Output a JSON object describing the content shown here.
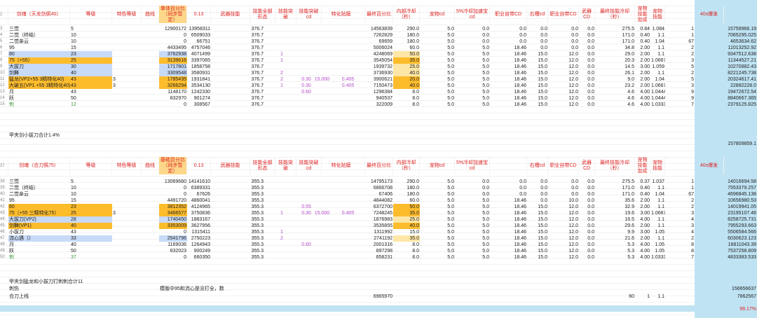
{
  "section1": {
    "headers": [
      "剑魂（天龙剑佩40）",
      "等级",
      "特色等级",
      "曲线",
      "单体百分比（同步暂定）",
      "0.13",
      "武器技能",
      "技能全部形态",
      "技能突破",
      "技能突破cd",
      "特化贴膜",
      "",
      "最终百分比",
      "内部冷却（秒）",
      "宠物cd",
      "5%冷却加速宝cd",
      "职业自带CD",
      "右槽cd",
      "职业自带CD",
      "武器CD",
      "最终技能冷却（秒）",
      "宠物技能加成",
      "宠物技能",
      "40s爆发"
    ],
    "rows": [
      {
        "n": "3",
        "c": [
          "三觉",
          "5",
          "",
          "",
          "12900172",
          "13958311",
          "376.7",
          "",
          "",
          "",
          "",
          "",
          "14563839",
          "290.0",
          "5.0",
          "0.0",
          "0.0",
          "0.0",
          "0.0",
          "0.0",
          "275.5",
          "0.84",
          "1.084",
          "1",
          "15759966.19"
        ],
        "cls": ""
      },
      {
        "n": "4",
        "c": [
          "二觉（终结）",
          "10",
          "",
          "",
          "0",
          "6509033",
          "376.7",
          "",
          "",
          "",
          "",
          "",
          "7262829",
          "180.0",
          "5.0",
          "0.0",
          "0.0",
          "0.0",
          "0.0",
          "0.0",
          "171.0",
          "0.40",
          "1.1",
          "1",
          "7065295.025"
        ],
        "cls": ""
      },
      {
        "n": "5",
        "c": [
          "二觉亲云",
          "10",
          "",
          "",
          "0",
          "66751",
          "376.7",
          "",
          "",
          "",
          "",
          "",
          "69659",
          "180.0",
          "5.0",
          "0.0",
          "0.0",
          "0.0",
          "0.0",
          "0.0",
          "171.0",
          "0.40",
          "1.04",
          "67",
          "4653634.62"
        ],
        "cls": ""
      },
      {
        "n": "6",
        "c": [
          "95",
          "15",
          "",
          "",
          "4433495",
          "4757046",
          "376.7",
          "",
          "",
          "",
          "",
          "",
          "5006024",
          "60.0",
          "5.0",
          "5.0",
          "18.46",
          "0.0",
          "0.0",
          "0.0",
          "34.8",
          "2.00",
          "1.1",
          "2",
          "11013252.92"
        ],
        "cls": ""
      },
      {
        "n": "7",
        "c": [
          "80",
          "23",
          "",
          "",
          "3762938",
          "4071499",
          "376.7",
          "1",
          "",
          "",
          "",
          "",
          "4248069",
          "50.0",
          "5.0",
          "5.0",
          "18.46",
          "15.0",
          "12.0",
          "0.0",
          "29.0",
          "2.00",
          "1.1",
          "2",
          "9347512.638"
        ],
        "cls": "blue"
      },
      {
        "n": "8",
        "c": [
          "75（+55）",
          "25",
          "",
          "",
          "3139616",
          "3397065",
          "376.7",
          "1",
          "",
          "",
          "",
          "",
          "3545054",
          "35.0",
          "5.0",
          "5.0",
          "18.46",
          "15.0",
          "12.0",
          "0.0",
          "20.3",
          "2.00",
          "1.0667",
          "3",
          "11344527.21"
        ],
        "cls": "orange"
      },
      {
        "n": "9",
        "c": [
          "大拔刀",
          "30",
          "",
          "",
          "1717801",
          "1858758",
          "376.7",
          "",
          "",
          "",
          "",
          "",
          "1939732",
          "25.0",
          "5.0",
          "5.0",
          "18.46",
          "15.0",
          "12.0",
          "0.0",
          "14.5",
          "3.00",
          "1.059",
          "5",
          "10270882.43"
        ],
        "cls": "blue"
      },
      {
        "n": "10",
        "c": [
          "剑舞",
          "40",
          "",
          "",
          "3309548",
          "3580931",
          "376.7",
          "2",
          "",
          "",
          "",
          "",
          "3736930",
          "40.0",
          "5.0",
          "5.0",
          "18.46",
          "15.0",
          "12.0",
          "0.0",
          "26.1",
          "2.00",
          "1.1",
          "2",
          "8221245.738"
        ],
        "cls": "blue"
      },
      {
        "n": "11",
        "c": [
          "猛龙(VP2+55 3精特化40)",
          "43",
          "3",
          "",
          "1785435",
          "1931841",
          "376.7",
          "2",
          "0.30",
          "15.000",
          "0.405",
          "",
          "3900621",
          "20.0",
          "5.0",
          "5.0",
          "18.46",
          "15.0",
          "12.0",
          "0.0",
          "9.0",
          "2.00",
          "1.04",
          "5",
          "20324617.41"
        ],
        "cls": "orange"
      },
      {
        "n": "12",
        "c": [
          "大破五(VP1 +55 3精特化40)",
          "43",
          "3",
          "",
          "3266294",
          "3534130",
          "376.7",
          "1",
          "0.30",
          "",
          "0.405",
          "",
          "7150473",
          "40.0",
          "5.0",
          "5.0",
          "18.46",
          "15.0",
          "12.0",
          "0.0",
          "23.2",
          "2.00",
          "1.0667",
          "3",
          "22882228.0"
        ],
        "cls": "orange"
      },
      {
        "n": "13",
        "c": [
          "月",
          "43",
          "",
          "",
          "1148170",
          "1242330",
          "376.7",
          "",
          "0.60",
          "",
          "",
          "",
          "1296384",
          "8.0",
          "5.0",
          "5.0",
          "18.46",
          "15.0",
          "12.0",
          "0.0",
          "4.6",
          "4.00",
          "1.0444",
          "9",
          "19472672.54"
        ],
        "cls": ""
      },
      {
        "n": "14",
        "c": [
          "跃",
          "50",
          "",
          "",
          "832970",
          "901274",
          "376.7",
          "",
          "",
          "",
          "",
          "",
          "940537",
          "8.0",
          "5.0",
          "5.0",
          "18.46",
          "15.0",
          "12.0",
          "0.0",
          "4.6",
          "4.00",
          "1.0444",
          "9",
          "8840667.365"
        ],
        "cls": ""
      },
      {
        "n": "15",
        "c": [
          "刺",
          "12",
          "",
          "",
          "0",
          "308567",
          "376.7",
          "",
          "",
          "",
          "",
          "",
          "322009",
          "8.0",
          "5.0",
          "5.0",
          "18.46",
          "15.0",
          "12.0",
          "0.0",
          "4.6",
          "4.00",
          "1.0333",
          "7",
          "2379125.825"
        ],
        "cls": "green"
      }
    ],
    "note": "甲夹剑小拔刀合计1.4%",
    "total": "157809859.1"
  },
  "section2": {
    "headers": [
      "剑魂（合刀佩75）",
      "等级",
      "特色等级",
      "曲线",
      "基础百分比（同步暂定）",
      "0.13",
      "武器技能",
      "技能全部形态",
      "技能突破",
      "技能突破cd",
      "特化贴膜",
      "",
      "最终百分比",
      "内部冷却（秒）",
      "宠物cd",
      "5%冷却加速宝cd",
      "",
      "右槽cd",
      "职业自带CD",
      "武器CD",
      "最终技能冷却（秒）",
      "宠物技能加成",
      "宠物技能",
      "40s爆发"
    ],
    "rows": [
      {
        "n": "38",
        "c": [
          "三觉",
          "5",
          "",
          "",
          "13069660",
          "14141610",
          "355.3",
          "",
          "",
          "",
          "",
          "",
          "14795173",
          "290.0",
          "5.0",
          "0.0",
          "0.0",
          "0.0",
          "0.0",
          "0.0",
          "275.5",
          "0.37",
          "1.037",
          "1",
          "14016694.58"
        ],
        "cls": ""
      },
      {
        "n": "39",
        "c": [
          "二觉（终结）",
          "10",
          "",
          "",
          "0",
          "6389331",
          "355.3",
          "",
          "",
          "",
          "",
          "",
          "6866708",
          "180.0",
          "5.0",
          "0.0",
          "0.0",
          "0.0",
          "0.0",
          "0.0",
          "171.0",
          "0.40",
          "1.1",
          "1",
          "7553379.257"
        ],
        "cls": ""
      },
      {
        "n": "40",
        "c": [
          "二觉亲云",
          "10",
          "",
          "",
          "0",
          "67626",
          "355.3",
          "",
          "",
          "",
          "",
          "",
          "67406",
          "180.0",
          "5.0",
          "0.0",
          "0.0",
          "0.0",
          "0.0",
          "0.0",
          "171.0",
          "0.40",
          "1.04",
          "67",
          "4696845.138"
        ],
        "cls": ""
      },
      {
        "n": "41",
        "c": [
          "95",
          "15",
          "",
          "",
          "4491720",
          "4860041",
          "355.3",
          "",
          "",
          "",
          "",
          "",
          "4844082",
          "60.0",
          "5.0",
          "5.0",
          "18.46",
          "0.0",
          "10.0",
          "0.0",
          "35.6",
          "2.00",
          "1.1",
          "2",
          "10656980.53"
        ],
        "cls": ""
      },
      {
        "n": "42",
        "c": [
          "80",
          "23",
          "",
          "",
          "3812352",
          "4124965",
          "355.3",
          "",
          "0.55",
          "",
          "",
          "",
          "6372700",
          "50.0",
          "5.0",
          "5.0",
          "18.46",
          "15.0",
          "12.0",
          "0.0",
          "32.9",
          "2.00",
          "1.1",
          "2",
          "14019941.05"
        ],
        "cls": "orange"
      },
      {
        "n": "43",
        "c": [
          "75（+55 三精特化75）",
          "25",
          "3",
          "",
          "3466577",
          "3750836",
          "355.3",
          "1",
          "0.30",
          "15.000",
          "0.405",
          "",
          "7248245",
          "35.0",
          "5.0",
          "5.0",
          "18.46",
          "15.0",
          "12.0",
          "0.0",
          "19.6",
          "3.00",
          "1.0667",
          "3",
          "23195107.46"
        ],
        "cls": "orange"
      },
      {
        "n": "44",
        "c": [
          "大拔刀(VP2)",
          "28",
          "",
          "",
          "1740450",
          "1883167",
          "355.3",
          "",
          "",
          "",
          "",
          "",
          "1876983",
          "25.0",
          "5.0",
          "5.0",
          "18.46",
          "15.0",
          "12.0",
          "0.0",
          "16.5",
          "4.00",
          "1.1",
          "4",
          "8258725.731"
        ],
        "cls": "blue"
      },
      {
        "n": "45",
        "c": [
          "剑舞(VP1)",
          "40",
          "",
          "",
          "3353009",
          "3627956",
          "355.3",
          "",
          "",
          "",
          "",
          "",
          "3535855",
          "40.0",
          "5.0",
          "5.0",
          "18.46",
          "15.0",
          "12.0",
          "0.0",
          "29.6",
          "2.00",
          "1.1",
          "3",
          "7955293.663"
        ],
        "cls": "orange"
      },
      {
        "n": "46",
        "c": [
          "小拔刀",
          "43",
          "",
          "",
          "0",
          "1315411",
          "355.3",
          "1",
          "",
          "",
          "",
          "",
          "1311992",
          "15.0",
          "5.0",
          "5.0",
          "18.46",
          "15.0",
          "12.0",
          "0.0",
          "9.9",
          "3.00",
          "1.05",
          "4",
          "5506584.566"
        ],
        "cls": ""
      },
      {
        "n": "47",
        "c": [
          "流心遇（）",
          "33",
          "",
          "",
          "2541796",
          "2750223",
          "355.3",
          "2",
          "",
          "",
          "",
          "",
          "2741192",
          "35.0",
          "5.0",
          "5.0",
          "18.46",
          "15.0",
          "12.0",
          "0.0",
          "21.6",
          "2.00",
          "1.1",
          "2",
          "6030623.123"
        ],
        "cls": "blue"
      },
      {
        "n": "48",
        "c": [
          "月",
          "40",
          "",
          "",
          "1169036",
          "1264943",
          "355.3",
          "",
          "0.60",
          "",
          "",
          "",
          "2001316",
          "8.0",
          "5.0",
          "5.0",
          "18.46",
          "15.0",
          "12.0",
          "0.0",
          "5.3",
          "4.00",
          "1.05",
          "8",
          "16811043.39"
        ],
        "cls": ""
      },
      {
        "n": "49",
        "c": [
          "跃",
          "50",
          "",
          "",
          "832023",
          "900249",
          "355.3",
          "",
          "",
          "",
          "",
          "",
          "897298",
          "8.0",
          "5.0",
          "5.0",
          "18.46",
          "15.0",
          "12.0",
          "0.0",
          "5.3",
          "4.00",
          "1.05",
          "8",
          "7537258.809"
        ],
        "cls": ""
      },
      {
        "n": "50",
        "c": [
          "刺",
          "37",
          "",
          "",
          "0",
          "660350",
          "355.3",
          "",
          "",
          "",
          "",
          "",
          "658231",
          "8.0",
          "5.0",
          "5.0",
          "18.46",
          "15.0",
          "12.0",
          "0.0",
          "5.3",
          "4.00",
          "1.0333",
          "7",
          "4833383.533"
        ],
        "cls": "green"
      }
    ],
    "note": "甲夹剑猛龙和小拔刀打刺刺合计11",
    "footer1_label": "刺伤",
    "footer1_text": "模版中95和流心是没打全，数",
    "footer1_total": "156656637",
    "footer2_label": "合刀上线",
    "footer2_val": "6965970",
    "footer2_a": "60",
    "footer2_b": "1",
    "footer2_c": "1.1",
    "footer2_total": "7662567",
    "final_pct": "99.17%"
  }
}
